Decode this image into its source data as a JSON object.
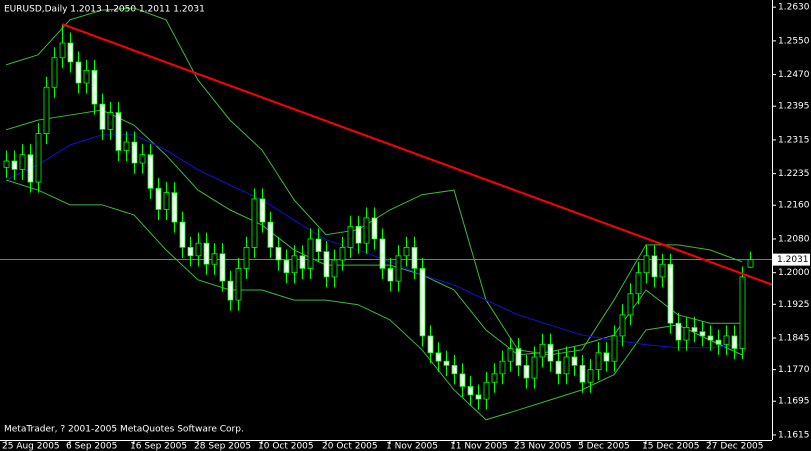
{
  "chart_data": {
    "type": "candlestick",
    "title": "EURUSD,Daily  1.2013 1.2050 1.2011 1.2031",
    "footer": "MetaTrader, ? 2001-2005 MetaQuotes Software Corp.",
    "categories": [
      "25 Aug 2005",
      null,
      null,
      null,
      null,
      null,
      null,
      null,
      "6 Sep 2005",
      null,
      null,
      null,
      null,
      null,
      null,
      null,
      "16 Sep 2005",
      null,
      null,
      null,
      null,
      null,
      null,
      null,
      "28 Sep 2005",
      null,
      null,
      null,
      null,
      null,
      null,
      null,
      "10 Oct 2005",
      null,
      null,
      null,
      null,
      null,
      null,
      null,
      "20 Oct 2005",
      null,
      null,
      null,
      null,
      null,
      null,
      null,
      "1 Nov 2005",
      null,
      null,
      null,
      null,
      null,
      null,
      null,
      "11 Nov 2005",
      null,
      null,
      null,
      null,
      null,
      null,
      null,
      "23 Nov 2005",
      null,
      null,
      null,
      null,
      null,
      null,
      null,
      "5 Dec 2005",
      null,
      null,
      null,
      null,
      null,
      null,
      null,
      "15 Dec 2005",
      null,
      null,
      null,
      null,
      null,
      null,
      null,
      "27 Dec 2005",
      null,
      null,
      null,
      null,
      null
    ],
    "open": [
      1.225,
      1.2265,
      1.2245,
      1.228,
      1.2215,
      1.233,
      1.244,
      1.251,
      1.2545,
      1.25,
      1.245,
      1.248,
      1.24,
      1.234,
      1.238,
      1.229,
      1.231,
      1.226,
      1.228,
      1.22,
      1.215,
      1.219,
      1.212,
      1.206,
      1.204,
      1.207,
      1.202,
      1.2045,
      1.198,
      1.1935,
      1.201,
      1.206,
      1.2175,
      1.212,
      1.206,
      1.203,
      1.2,
      1.204,
      1.201,
      1.208,
      1.205,
      1.199,
      1.203,
      1.206,
      1.211,
      1.207,
      1.213,
      1.208,
      1.201,
      1.198,
      1.204,
      1.206,
      1.201,
      1.185,
      1.181,
      1.179,
      1.178,
      1.176,
      1.173,
      1.171,
      1.17,
      1.174,
      1.176,
      1.179,
      1.182,
      1.178,
      1.175,
      1.18,
      1.183,
      1.179,
      1.176,
      1.18,
      1.178,
      1.174,
      1.177,
      1.181,
      1.179,
      1.185,
      1.19,
      1.195,
      1.2,
      1.204,
      1.199,
      1.202,
      1.188,
      1.184,
      1.187,
      1.186,
      1.185,
      1.184,
      1.183,
      1.185,
      1.182,
      1.2013
    ],
    "high": [
      1.229,
      1.229,
      1.2305,
      1.2305,
      1.2355,
      1.2465,
      1.2535,
      1.259,
      1.257,
      1.2525,
      1.2505,
      1.2505,
      1.2425,
      1.2405,
      1.2405,
      1.2335,
      1.2335,
      1.2305,
      1.2305,
      1.2225,
      1.2215,
      1.2215,
      1.2145,
      1.2085,
      1.2095,
      1.2095,
      1.207,
      1.207,
      1.2005,
      1.2035,
      1.2085,
      1.22,
      1.22,
      1.2145,
      1.2085,
      1.2055,
      1.2065,
      1.2065,
      1.2105,
      1.2105,
      1.2075,
      1.2055,
      1.2085,
      1.2135,
      1.2135,
      1.2155,
      1.2155,
      1.2105,
      1.2035,
      1.2065,
      1.2085,
      1.2085,
      1.2035,
      1.1875,
      1.1835,
      1.1815,
      1.1805,
      1.1785,
      1.1755,
      1.1735,
      1.1765,
      1.1785,
      1.1815,
      1.1845,
      1.1845,
      1.1805,
      1.1825,
      1.1855,
      1.1855,
      1.1815,
      1.1825,
      1.1825,
      1.1805,
      1.1795,
      1.1835,
      1.1835,
      1.1875,
      1.1925,
      1.1975,
      1.2025,
      1.2065,
      1.2065,
      1.2045,
      1.2045,
      1.1905,
      1.1895,
      1.1895,
      1.1885,
      1.1875,
      1.1865,
      1.1875,
      1.1875,
      1.2015,
      1.205
    ],
    "low": [
      1.2225,
      1.222,
      1.222,
      1.219,
      1.219,
      1.2305,
      1.2415,
      1.2485,
      1.2475,
      1.2425,
      1.2425,
      1.2375,
      1.2315,
      1.2315,
      1.2265,
      1.2265,
      1.2235,
      1.2235,
      1.2175,
      1.2125,
      1.2125,
      1.2095,
      1.2035,
      1.2015,
      1.2015,
      1.1995,
      1.1995,
      1.1955,
      1.191,
      1.191,
      1.1985,
      1.2035,
      1.2095,
      1.2035,
      1.2005,
      1.1975,
      1.1975,
      1.1985,
      1.1985,
      1.2025,
      1.1965,
      1.1965,
      1.2005,
      1.2035,
      1.2045,
      1.2045,
      1.2055,
      1.1985,
      1.1955,
      1.1955,
      1.2015,
      1.1985,
      1.1825,
      1.1785,
      1.1765,
      1.1755,
      1.1735,
      1.1705,
      1.1685,
      1.1675,
      1.1675,
      1.1715,
      1.1735,
      1.1765,
      1.1755,
      1.1725,
      1.1725,
      1.1775,
      1.1765,
      1.1735,
      1.1735,
      1.1755,
      1.1715,
      1.1715,
      1.1745,
      1.1765,
      1.1765,
      1.1825,
      1.1875,
      1.1925,
      1.1975,
      1.1965,
      1.1965,
      1.1855,
      1.1815,
      1.1815,
      1.1835,
      1.1825,
      1.1815,
      1.1805,
      1.1805,
      1.1795,
      1.1795,
      1.2011
    ],
    "close": [
      1.2265,
      1.2245,
      1.228,
      1.2215,
      1.233,
      1.244,
      1.251,
      1.2545,
      1.25,
      1.245,
      1.248,
      1.24,
      1.234,
      1.238,
      1.229,
      1.231,
      1.226,
      1.228,
      1.22,
      1.215,
      1.219,
      1.212,
      1.206,
      1.204,
      1.207,
      1.202,
      1.2045,
      1.198,
      1.1935,
      1.201,
      1.206,
      1.2175,
      1.212,
      1.206,
      1.203,
      1.2,
      1.204,
      1.201,
      1.208,
      1.205,
      1.199,
      1.203,
      1.206,
      1.211,
      1.207,
      1.213,
      1.208,
      1.201,
      1.198,
      1.204,
      1.206,
      1.201,
      1.185,
      1.181,
      1.179,
      1.178,
      1.176,
      1.173,
      1.171,
      1.17,
      1.174,
      1.176,
      1.179,
      1.182,
      1.178,
      1.175,
      1.18,
      1.183,
      1.179,
      1.176,
      1.18,
      1.178,
      1.174,
      1.177,
      1.181,
      1.179,
      1.185,
      1.19,
      1.195,
      1.2,
      1.204,
      1.199,
      1.202,
      1.188,
      1.184,
      1.187,
      1.186,
      1.185,
      1.184,
      1.183,
      1.185,
      1.182,
      1.199,
      1.2031
    ],
    "up_color": "#000000",
    "down_color": "#ffffff",
    "wick_color": "#00ff00",
    "ylim": [
      1.1603,
      1.2647
    ],
    "yticks": [
      {
        "value": 1.263,
        "label": "1.2630"
      },
      {
        "value": 1.255,
        "label": "1.2550"
      },
      {
        "value": 1.247,
        "label": "1.2470"
      },
      {
        "value": 1.2395,
        "label": "1.2395"
      },
      {
        "value": 1.2315,
        "label": "1.2315"
      },
      {
        "value": 1.2235,
        "label": "1.2235"
      },
      {
        "value": 1.216,
        "label": "1.2160"
      },
      {
        "value": 1.208,
        "label": "1.2080"
      },
      {
        "value": 1.2,
        "label": "1.2000"
      },
      {
        "value": 1.1925,
        "label": "1.1925"
      },
      {
        "value": 1.1845,
        "label": "1.1845"
      },
      {
        "value": 1.177,
        "label": "1.1770"
      },
      {
        "value": 1.1695,
        "label": "1.1695"
      },
      {
        "value": 1.1615,
        "label": "1.1615"
      }
    ],
    "overlays": [
      {
        "color": "#3cb83c",
        "x": [
          0,
          4,
          8,
          12,
          16,
          20,
          24,
          28,
          32,
          36,
          40,
          44,
          48,
          52,
          56,
          60,
          64,
          68,
          72,
          76,
          80,
          84,
          88,
          92
        ],
        "values": [
          1.2493,
          1.2517,
          1.26,
          1.2623,
          1.2628,
          1.26,
          1.2457,
          1.2362,
          1.2291,
          1.2173,
          1.209,
          1.2102,
          1.2149,
          1.2185,
          1.2196,
          1.1935,
          1.1817,
          1.1805,
          1.1817,
          1.1935,
          1.2066,
          1.2066,
          1.2054,
          1.2026
        ]
      },
      {
        "color": "#3cb83c",
        "x": [
          0,
          4,
          8,
          12,
          16,
          20,
          24,
          28,
          32,
          36,
          40,
          44,
          48,
          52,
          56,
          60,
          64,
          68,
          72,
          76,
          80,
          84,
          88,
          92
        ],
        "values": [
          1.2339,
          1.2362,
          1.2374,
          1.2386,
          1.235,
          1.2279,
          1.2196,
          1.2149,
          1.2113,
          1.2054,
          1.2018,
          1.2018,
          1.2018,
          1.1995,
          1.1959,
          1.1864,
          1.1805,
          1.1812,
          1.1829,
          1.1852,
          1.1959,
          1.19,
          1.188,
          1.188
        ]
      },
      {
        "color": "#3cb83c",
        "x": [
          0,
          4,
          8,
          12,
          16,
          20,
          24,
          28,
          32,
          36,
          40,
          44,
          48,
          52,
          56,
          60,
          64,
          68,
          72,
          76,
          80,
          84,
          88,
          92
        ],
        "values": [
          1.222,
          1.2196,
          1.2161,
          1.2161,
          1.2137,
          1.2054,
          1.1983,
          1.1959,
          1.1959,
          1.1935,
          1.1935,
          1.1924,
          1.1888,
          1.1817,
          1.1722,
          1.1651,
          1.1674,
          1.1698,
          1.1722,
          1.1758,
          1.1864,
          1.1876,
          1.184,
          1.1805
        ]
      },
      {
        "color": "#1010e0",
        "x": [
          0,
          4,
          8,
          12,
          16,
          20,
          24,
          28,
          32,
          36,
          40,
          44,
          48,
          52,
          56,
          60,
          64,
          68,
          72,
          76,
          80,
          84,
          88,
          92
        ],
        "values": [
          1.222,
          1.2256,
          1.2303,
          1.2327,
          1.2327,
          1.2291,
          1.2244,
          1.2208,
          1.2173,
          1.2125,
          1.2078,
          1.2054,
          1.2026,
          1.1995,
          1.1971,
          1.1935,
          1.19,
          1.1876,
          1.1852,
          1.184,
          1.1829,
          1.1822,
          1.1822,
          1.1829
        ]
      }
    ],
    "trendline": {
      "color": "#ff0000",
      "x": [
        7,
        96
      ],
      "values": [
        1.259,
        1.197
      ]
    },
    "current_price": {
      "value": 1.2031,
      "label": "1.2031"
    }
  }
}
